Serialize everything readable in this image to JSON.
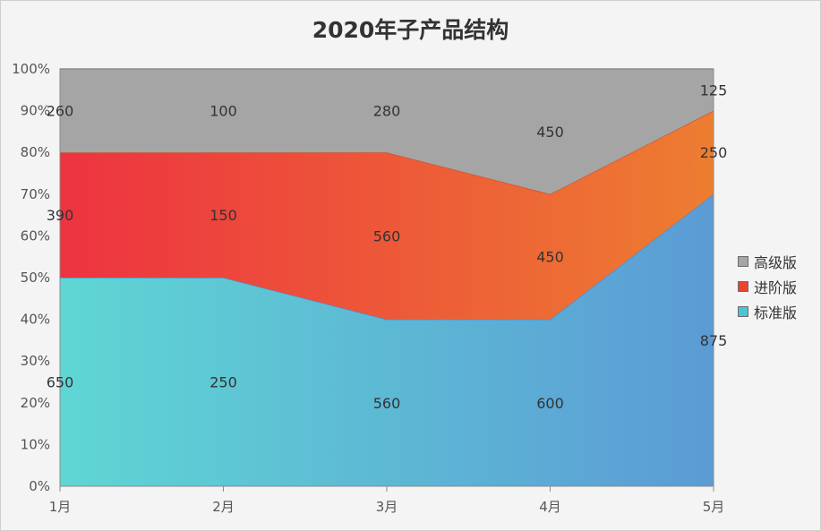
{
  "chart_data": {
    "type": "area",
    "stacked": "percent",
    "title": "2020年子产品结构",
    "categories": [
      "1月",
      "2月",
      "3月",
      "4月",
      "5月"
    ],
    "y_ticks": [
      "0%",
      "10%",
      "20%",
      "30%",
      "40%",
      "50%",
      "60%",
      "70%",
      "80%",
      "90%",
      "100%"
    ],
    "ylim": [
      0,
      100
    ],
    "legend_position": "right",
    "series": [
      {
        "name": "标准版",
        "values": [
          650,
          250,
          560,
          600,
          875
        ],
        "color_start": "#5fd6d4",
        "color_end": "#5b9bd5"
      },
      {
        "name": "进阶版",
        "values": [
          390,
          150,
          560,
          450,
          250
        ],
        "color_start": "#ed3340",
        "color_end": "#ed7d31"
      },
      {
        "name": "高级版",
        "values": [
          260,
          100,
          280,
          450,
          125
        ],
        "color_start": "#a5a5a5",
        "color_end": "#a5a5a5"
      }
    ],
    "legend_order": [
      "高级版",
      "进阶版",
      "标准版"
    ],
    "legend_colors": {
      "高级版": "#a5a5a5",
      "进阶版": "#e8452f",
      "标准版": "#4cc4d8"
    }
  }
}
